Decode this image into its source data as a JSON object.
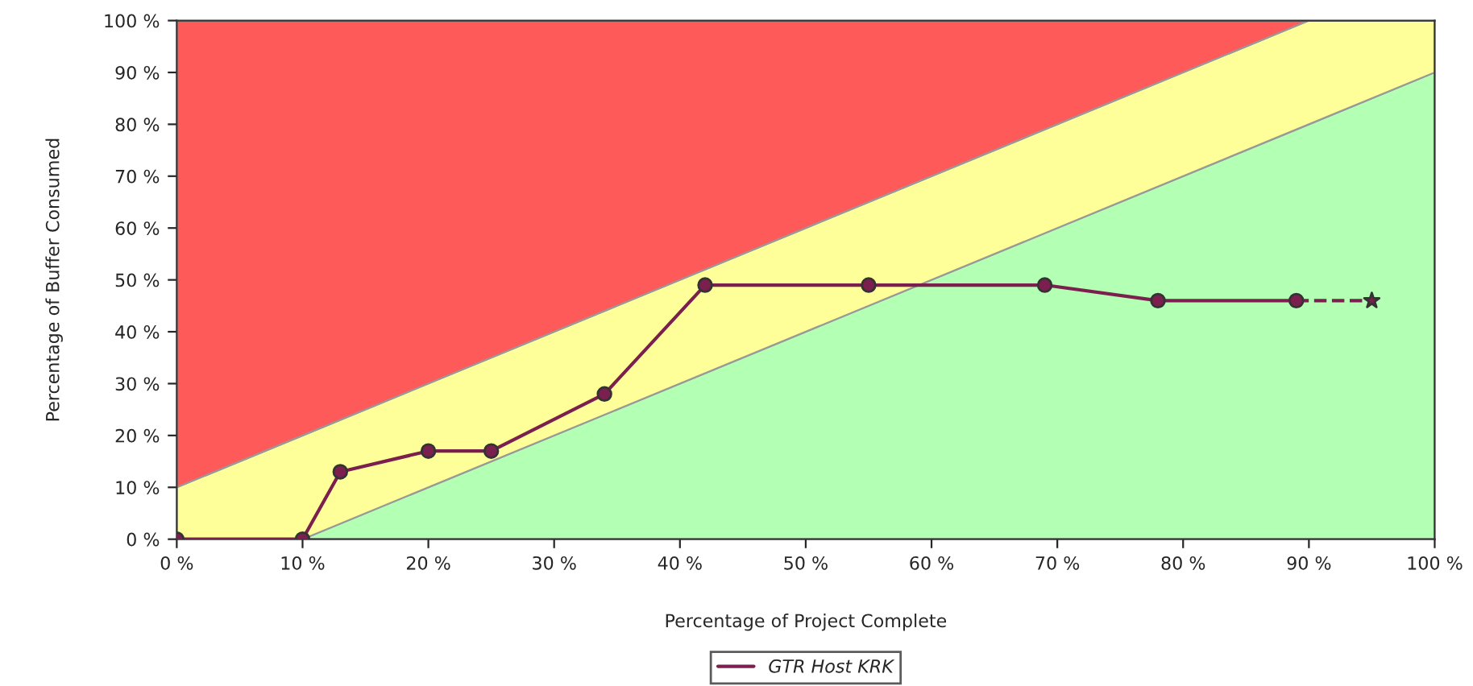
{
  "chart_data": {
    "type": "area",
    "stacked": true,
    "xlabel": "Percentage of Project Complete",
    "ylabel": "Percentage of Buffer Consumed",
    "xlim": [
      0,
      100
    ],
    "ylim": [
      0,
      100
    ],
    "xticks": [
      {
        "value": 0,
        "label": "0 %"
      },
      {
        "value": 10,
        "label": "10 %"
      },
      {
        "value": 20,
        "label": "20 %"
      },
      {
        "value": 30,
        "label": "30 %"
      },
      {
        "value": 40,
        "label": "40 %"
      },
      {
        "value": 50,
        "label": "50 %"
      },
      {
        "value": 60,
        "label": "60 %"
      },
      {
        "value": 70,
        "label": "70 %"
      },
      {
        "value": 80,
        "label": "80 %"
      },
      {
        "value": 90,
        "label": "90 %"
      },
      {
        "value": 100,
        "label": "100 %"
      }
    ],
    "yticks": [
      {
        "value": 0,
        "label": "0 %"
      },
      {
        "value": 10,
        "label": "10 %"
      },
      {
        "value": 20,
        "label": "20 %"
      },
      {
        "value": 30,
        "label": "30 %"
      },
      {
        "value": 40,
        "label": "40 %"
      },
      {
        "value": 50,
        "label": "50 %"
      },
      {
        "value": 60,
        "label": "60 %"
      },
      {
        "value": 70,
        "label": "70 %"
      },
      {
        "value": 80,
        "label": "80 %"
      },
      {
        "value": 90,
        "label": "90 %"
      },
      {
        "value": 100,
        "label": "100 %"
      }
    ],
    "legend": "bottom",
    "series": [
      {
        "color": "#b3ffb3",
        "x": [
          0,
          10,
          90,
          100
        ],
        "values": [
          0,
          0,
          80,
          90
        ]
      },
      {
        "color": "#ffff99",
        "x": [
          0,
          10,
          90,
          100
        ],
        "values": [
          10,
          20,
          20,
          10
        ]
      },
      {
        "color": "#ff5a5a",
        "x": [
          0,
          10,
          90,
          100
        ],
        "values": [
          90,
          80,
          0,
          0
        ]
      },
      {
        "type": "line",
        "color": "#7b1f4f",
        "x": [
          89,
          95
        ],
        "values": [
          46,
          46
        ],
        "line_style": "dashed"
      },
      {
        "type": "scatter",
        "color": "#7b1f4f",
        "x": [
          95
        ],
        "values": [
          46
        ],
        "marker": "star"
      },
      {
        "type": "line",
        "name": "GTR Host KRK",
        "color": "#7b1f4f",
        "x": [
          0,
          10,
          13,
          20,
          25,
          34,
          42,
          55,
          69,
          78,
          89
        ],
        "values": [
          0,
          0,
          13,
          17,
          17,
          28,
          49,
          49,
          49,
          46,
          46
        ],
        "line_style": "solid",
        "marker": "circle"
      }
    ]
  }
}
